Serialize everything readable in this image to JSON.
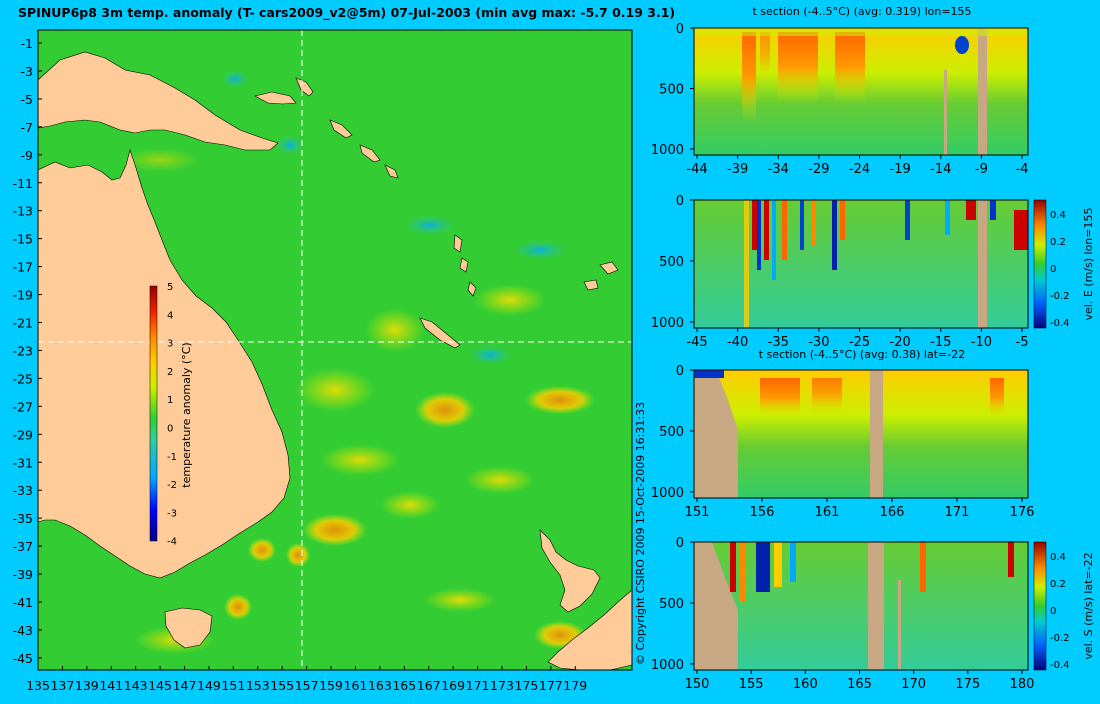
{
  "title": "SPINUP6p8 3m temp. anomaly (T- cars2009_v2@5m) 07-Jul-2003 (min avg max: -5.7 0.19 3.1)",
  "map": {
    "lat_ticks": [
      "-1",
      "-3",
      "-5",
      "-7",
      "-9",
      "-11",
      "-13",
      "-15",
      "-17",
      "-19",
      "-21",
      "-23",
      "-25",
      "-27",
      "-29",
      "-31",
      "-33",
      "-35",
      "-37",
      "-39",
      "-41",
      "-43",
      "-45"
    ],
    "lon_ticks": [
      "135",
      "137",
      "139",
      "141",
      "143",
      "145",
      "147",
      "149",
      "151",
      "153",
      "155",
      "157",
      "159",
      "161",
      "163",
      "165",
      "167",
      "169",
      "171",
      "173",
      "175",
      "177",
      "179"
    ],
    "colorbar": {
      "label": "temperature anomaly (°C)",
      "ticks": [
        "5",
        "4",
        "3",
        "2",
        "1",
        "0",
        "-1",
        "-2",
        "-3",
        "-4"
      ]
    },
    "crosshair": {
      "lon": 155,
      "lat": -22
    }
  },
  "copyright": "© Copyright CSIRO 2009   15-Oct-2009 16:31:33",
  "panels": [
    {
      "title": "t section (-4..5°C) (avg: 0.319) lon=155",
      "y_ticks": [
        "0",
        "500",
        "1000"
      ],
      "x_ticks": [
        "-44",
        "-39",
        "-34",
        "-29",
        "-24",
        "-19",
        "-14",
        "-9",
        "-4"
      ],
      "colorbar": null
    },
    {
      "title": "",
      "y_ticks": [
        "0",
        "500",
        "1000"
      ],
      "x_ticks": [
        "-45",
        "-40",
        "-35",
        "-30",
        "-25",
        "-20",
        "-15",
        "-10",
        "-5"
      ],
      "colorbar": {
        "label": "vel. E (m/s) lon=155",
        "ticks": [
          "0.4",
          "0.2",
          "0",
          "-0.2",
          "-0.4"
        ]
      }
    },
    {
      "title": "t section (-4..5°C) (avg: 0.38) lat=-22",
      "y_ticks": [
        "0",
        "500",
        "1000"
      ],
      "x_ticks": [
        "151",
        "156",
        "161",
        "166",
        "171",
        "176"
      ],
      "colorbar": null
    },
    {
      "title": "",
      "y_ticks": [
        "0",
        "500",
        "1000"
      ],
      "x_ticks": [
        "150",
        "155",
        "160",
        "165",
        "170",
        "175",
        "180"
      ],
      "colorbar": {
        "label": "vel. S (m/s) lat=-22",
        "ticks": [
          "0.4",
          "0.2",
          "0",
          "-0.2",
          "-0.4"
        ]
      }
    }
  ],
  "colors": {
    "background": "#00ccff",
    "ocean": "#33cc33",
    "land": "#ffcc99",
    "section_land": "#c8a882",
    "warm": "#ff9900",
    "hot": "#cc0000",
    "cool": "#00aaff",
    "cold": "#000080"
  }
}
